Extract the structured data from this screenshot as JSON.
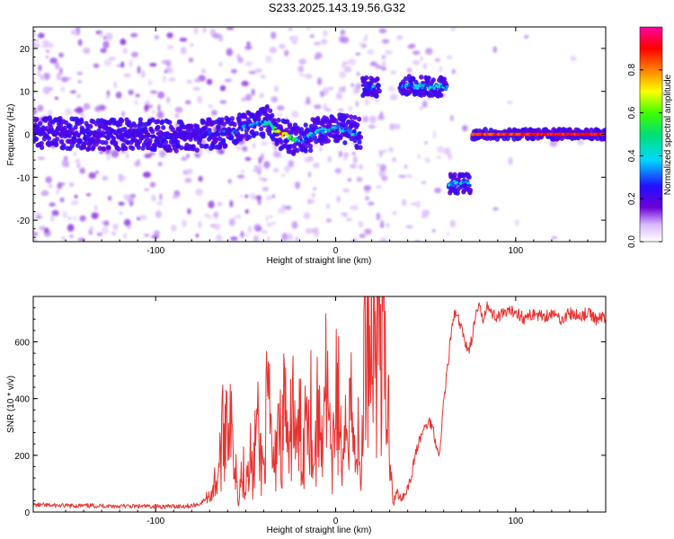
{
  "title": "S233.2025.143.19.56.G32",
  "colors": {
    "snr_line": "#e8322f",
    "ridge_edge": "#6a00d8",
    "ridge_core": "#00c8ff",
    "hot": "#ff2a4a"
  },
  "chart_data": [
    {
      "type": "heatmap",
      "title": "S233.2025.143.19.56.G32",
      "xlabel": "Height of straight line (km)",
      "ylabel": "Frequency (Hz)",
      "xlim": [
        -168,
        150
      ],
      "ylim": [
        -25,
        25
      ],
      "xticks": [
        -100,
        0,
        100
      ],
      "yticks": [
        -20,
        -10,
        0,
        10,
        20
      ],
      "grid": false,
      "colorbar": {
        "label": "Normalized spectral amplitude",
        "range": [
          0,
          1
        ],
        "ticks": [
          0.0,
          0.2,
          0.4,
          0.6,
          0.8
        ],
        "tick_labels": [
          "0.0",
          "0.2",
          "0.4",
          "0.6",
          "0.8"
        ],
        "colormap": "rainbow (white-violet-blue-cyan-green-yellow-red-magenta)"
      },
      "ridges": [
        {
          "x": [
            -168,
            -140,
            -110,
            -80,
            -60,
            -45,
            -38,
            -30,
            -20,
            -10,
            0,
            10,
            14
          ],
          "freq": [
            0.5,
            0,
            0,
            -0.5,
            0.5,
            2,
            3,
            0,
            -1.5,
            0.5,
            1.5,
            0.5,
            0
          ],
          "amplitude": [
            0.25,
            0.25,
            0.25,
            0.28,
            0.35,
            0.45,
            0.5,
            0.95,
            0.45,
            0.5,
            0.5,
            0.45,
            0.3
          ]
        },
        {
          "x": [
            15,
            24
          ],
          "freq": [
            11,
            11
          ],
          "amplitude": [
            0.35,
            0.45
          ]
        },
        {
          "x": [
            36,
            62
          ],
          "freq": [
            11.5,
            11
          ],
          "amplitude": [
            0.45,
            0.5
          ]
        },
        {
          "x": [
            63,
            75
          ],
          "freq": [
            -11.5,
            -11.5
          ],
          "amplitude": [
            0.45,
            0.5
          ]
        },
        {
          "x": [
            76,
            150
          ],
          "freq": [
            0,
            0
          ],
          "amplitude": [
            0.9,
            0.95
          ]
        }
      ]
    },
    {
      "type": "line",
      "xlabel": "Height of straight line (km)",
      "ylabel": "SNR (10 * v/v)",
      "xlim": [
        -168,
        150
      ],
      "ylim": [
        0,
        760
      ],
      "xticks": [
        -100,
        0,
        100
      ],
      "yticks": [
        0,
        200,
        400,
        600
      ],
      "grid": false,
      "series": [
        {
          "x": [
            -168,
            -150,
            -130,
            -110,
            -90,
            -80,
            -75,
            -70,
            -66,
            -64,
            -62,
            -60,
            -58,
            -56,
            -54,
            -52,
            -50,
            -48,
            -46,
            -44,
            -42,
            -40,
            -38,
            -36,
            -34,
            -32,
            -30,
            -28,
            -26,
            -24,
            -22,
            -20,
            -18,
            -16,
            -14,
            -12,
            -10,
            -8,
            -6,
            -4,
            -2,
            0,
            2,
            4,
            6,
            8,
            10,
            12,
            14,
            16,
            18,
            20,
            22,
            24,
            26,
            28,
            30,
            32,
            34,
            36,
            38,
            40,
            42,
            44,
            46,
            48,
            50,
            52,
            54,
            56,
            58,
            60,
            62,
            64,
            66,
            68,
            70,
            72,
            74,
            76,
            78,
            80,
            82,
            84,
            86,
            90,
            95,
            100,
            105,
            110,
            115,
            120,
            125,
            130,
            135,
            140,
            145,
            150
          ],
          "y": [
            25,
            22,
            22,
            20,
            20,
            22,
            30,
            60,
            120,
            200,
            300,
            420,
            260,
            200,
            60,
            150,
            120,
            250,
            100,
            320,
            200,
            150,
            380,
            260,
            120,
            400,
            200,
            450,
            100,
            450,
            200,
            300,
            200,
            470,
            400,
            150,
            350,
            250,
            500,
            330,
            100,
            470,
            350,
            120,
            300,
            500,
            200,
            300,
            80,
            580,
            660,
            650,
            620,
            660,
            630,
            400,
            300,
            30,
            70,
            50,
            60,
            90,
            120,
            200,
            240,
            280,
            300,
            320,
            300,
            230,
            210,
            400,
            500,
            620,
            700,
            680,
            640,
            600,
            570,
            620,
            700,
            720,
            680,
            740,
            700,
            690,
            700,
            710,
            680,
            700,
            690,
            700,
            680,
            700,
            690,
            700,
            680,
            690
          ]
        }
      ]
    }
  ]
}
